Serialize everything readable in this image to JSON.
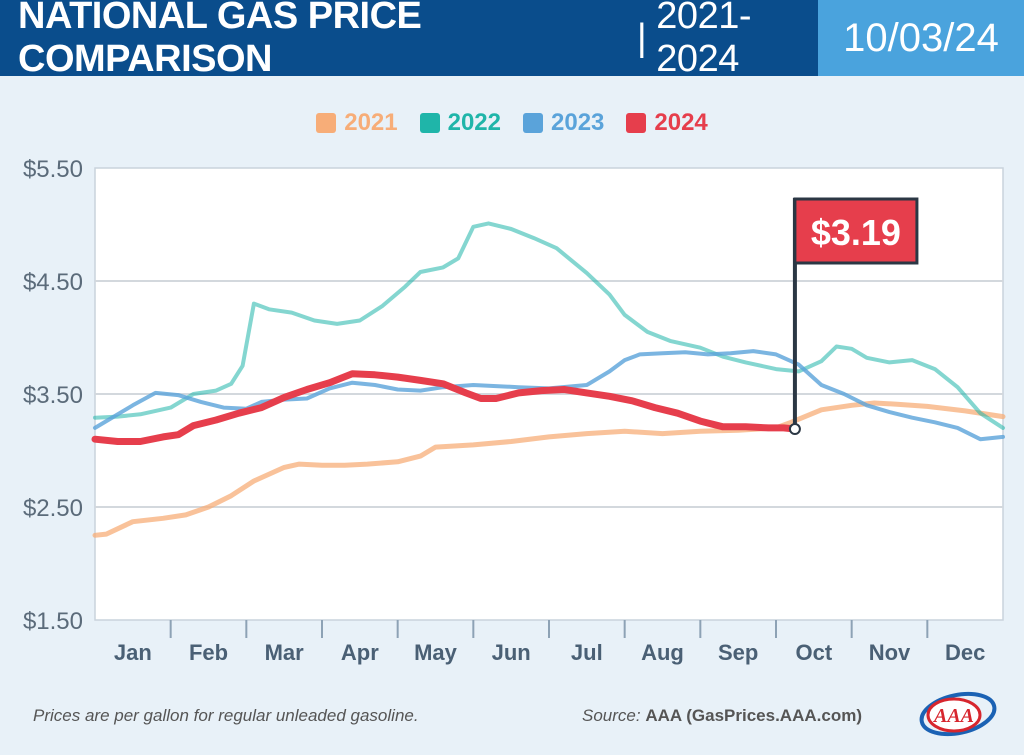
{
  "header": {
    "title": "NATIONAL GAS PRICE COMPARISON",
    "separator": "|",
    "years": "2021-2024",
    "date": "10/03/24"
  },
  "legend": [
    {
      "label": "2021",
      "color": "#f7ad78"
    },
    {
      "label": "2022",
      "color": "#1fb5a9"
    },
    {
      "label": "2023",
      "color": "#5aa3da"
    },
    {
      "label": "2024",
      "color": "#e63e4c"
    }
  ],
  "callout": {
    "label": "$3.19",
    "color": "#e63e4c"
  },
  "footnote": "Prices are per gallon for regular unleaded gasoline.",
  "source": {
    "label": "Source:",
    "value": "AAA (GasPrices.AAA.com)"
  },
  "logo": {
    "icon": "aaa-logo",
    "text": "AAA"
  },
  "chart_data": {
    "type": "line",
    "title": "NATIONAL GAS PRICE COMPARISON | 2021-2024",
    "ylim": [
      1.5,
      5.5
    ],
    "y_ticks": [
      {
        "value": 5.5,
        "label": "$5.50"
      },
      {
        "value": 4.5,
        "label": "$4.50"
      },
      {
        "value": 3.5,
        "label": "$3.50"
      },
      {
        "value": 2.5,
        "label": "$2.50"
      },
      {
        "value": 1.5,
        "label": "$1.50"
      }
    ],
    "x_unit": "month",
    "xlim": [
      0,
      12
    ],
    "months": [
      "Jan",
      "Feb",
      "Mar",
      "Apr",
      "May",
      "Jun",
      "Jul",
      "Aug",
      "Sep",
      "Oct",
      "Nov",
      "Dec"
    ],
    "grid": true,
    "legend_position": "top-center",
    "series": [
      {
        "name": "2021",
        "color": "#f7ad78",
        "x": [
          0,
          0.15,
          0.5,
          0.9,
          1.2,
          1.5,
          1.8,
          2.1,
          2.5,
          2.7,
          3,
          3.3,
          3.6,
          4,
          4.3,
          4.5,
          5,
          5.5,
          6,
          6.5,
          7,
          7.5,
          8,
          8.5,
          9,
          9.2,
          9.6,
          10,
          10.3,
          10.6,
          11,
          11.5,
          12
        ],
        "values": [
          2.25,
          2.26,
          2.37,
          2.4,
          2.43,
          2.5,
          2.6,
          2.73,
          2.85,
          2.88,
          2.87,
          2.87,
          2.88,
          2.9,
          2.95,
          3.03,
          3.05,
          3.08,
          3.12,
          3.15,
          3.17,
          3.15,
          3.17,
          3.18,
          3.2,
          3.25,
          3.36,
          3.4,
          3.42,
          3.41,
          3.39,
          3.35,
          3.3
        ]
      },
      {
        "name": "2022",
        "color": "#1fb5a9",
        "x": [
          0,
          0.3,
          0.6,
          1,
          1.3,
          1.6,
          1.8,
          1.95,
          2.1,
          2.3,
          2.6,
          2.9,
          3.2,
          3.5,
          3.8,
          4.1,
          4.3,
          4.6,
          4.8,
          5,
          5.2,
          5.5,
          5.8,
          6.1,
          6.5,
          6.8,
          7,
          7.3,
          7.6,
          8,
          8.3,
          8.6,
          9,
          9.3,
          9.6,
          9.8,
          10,
          10.2,
          10.5,
          10.8,
          11.1,
          11.4,
          11.7,
          12
        ],
        "values": [
          3.29,
          3.3,
          3.32,
          3.38,
          3.5,
          3.53,
          3.59,
          3.75,
          4.3,
          4.25,
          4.22,
          4.15,
          4.12,
          4.15,
          4.28,
          4.45,
          4.58,
          4.62,
          4.7,
          4.98,
          5.01,
          4.96,
          4.88,
          4.79,
          4.57,
          4.38,
          4.2,
          4.05,
          3.97,
          3.91,
          3.83,
          3.78,
          3.72,
          3.7,
          3.79,
          3.92,
          3.9,
          3.82,
          3.78,
          3.8,
          3.72,
          3.56,
          3.33,
          3.2
        ]
      },
      {
        "name": "2023",
        "color": "#5aa3da",
        "x": [
          0,
          0.2,
          0.5,
          0.8,
          1.1,
          1.4,
          1.7,
          2,
          2.2,
          2.5,
          2.8,
          3.1,
          3.4,
          3.7,
          4,
          4.3,
          4.6,
          5,
          5.3,
          5.6,
          6,
          6.5,
          6.8,
          7,
          7.2,
          7.5,
          7.8,
          8.1,
          8.4,
          8.7,
          9,
          9.3,
          9.6,
          9.9,
          10.2,
          10.5,
          10.8,
          11.1,
          11.4,
          11.7,
          12
        ],
        "values": [
          3.2,
          3.28,
          3.4,
          3.51,
          3.49,
          3.43,
          3.38,
          3.37,
          3.43,
          3.45,
          3.46,
          3.55,
          3.6,
          3.58,
          3.54,
          3.53,
          3.56,
          3.58,
          3.57,
          3.56,
          3.55,
          3.58,
          3.7,
          3.8,
          3.85,
          3.86,
          3.87,
          3.85,
          3.86,
          3.88,
          3.85,
          3.76,
          3.58,
          3.5,
          3.4,
          3.34,
          3.29,
          3.25,
          3.2,
          3.1,
          3.12
        ]
      },
      {
        "name": "2024",
        "color": "#e63e4c",
        "x": [
          0,
          0.3,
          0.6,
          0.9,
          1.1,
          1.3,
          1.6,
          1.9,
          2.2,
          2.5,
          2.8,
          3.1,
          3.4,
          3.7,
          4,
          4.3,
          4.6,
          4.9,
          5.1,
          5.3,
          5.6,
          5.9,
          6.2,
          6.5,
          6.8,
          7.1,
          7.4,
          7.7,
          8,
          8.3,
          8.6,
          8.9,
          9.1,
          9.25
        ],
        "values": [
          3.1,
          3.08,
          3.08,
          3.12,
          3.14,
          3.22,
          3.27,
          3.33,
          3.38,
          3.47,
          3.54,
          3.6,
          3.68,
          3.67,
          3.65,
          3.62,
          3.59,
          3.51,
          3.46,
          3.46,
          3.51,
          3.53,
          3.54,
          3.51,
          3.48,
          3.44,
          3.38,
          3.33,
          3.26,
          3.21,
          3.21,
          3.2,
          3.2,
          3.19
        ]
      }
    ],
    "annotation": {
      "series": "2024",
      "x": 9.25,
      "value": 3.19,
      "label": "$3.19"
    }
  }
}
